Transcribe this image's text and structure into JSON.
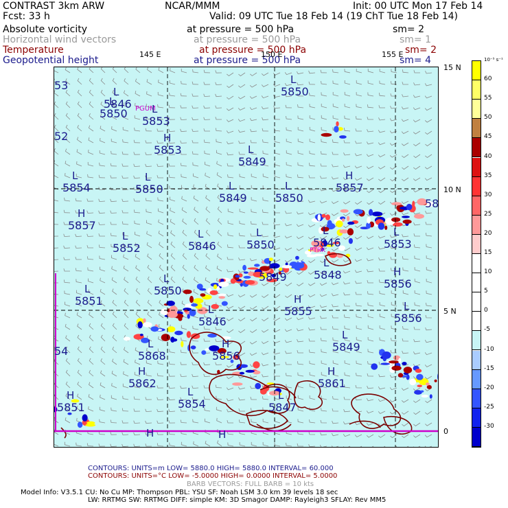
{
  "header": {
    "line1_left": "CONTRAST  3km ARW",
    "line1_center": "NCAR/MMM",
    "line1_right": "Init: 00 UTC Mon 17 Feb 14",
    "line2_left": "Fcst:    33 h",
    "line2_right": "Valid: 09 UTC Tue 18 Feb 14 (19 ChT Tue 18 Feb 14)",
    "fields": [
      {
        "name": "Absolute vorticity",
        "level": "at pressure =  500 hPa",
        "sm": "sm= 2",
        "color": "#000000"
      },
      {
        "name": "Horizontal wind vectors",
        "level": "at pressure =  500 hPa",
        "sm": "sm= 1",
        "color": "#9a9a9a"
      },
      {
        "name": "Temperature",
        "level": "at pressure =  500 hPa",
        "sm": "sm= 2",
        "color": "#8b0000"
      },
      {
        "name": "Geopotential height",
        "level": "at pressure =  500 hPa",
        "sm": "sm= 4",
        "color": "#1a1a8c"
      }
    ]
  },
  "map": {
    "lon_labels": [
      "145 E",
      "150 E",
      "155 E"
    ],
    "lat_labels": [
      "15 N",
      "10 N",
      "5 N",
      "0"
    ],
    "station_labels": [
      "PGUM",
      "PTRK"
    ],
    "height_centers": [
      {
        "type": "L",
        "value": "5846"
      },
      {
        "type": "L",
        "value": "5850"
      },
      {
        "type": "L",
        "value": "5853"
      },
      {
        "type": "H",
        "value": "5853"
      },
      {
        "type": "L",
        "value": "5849"
      },
      {
        "type": "L",
        "value": "5854"
      },
      {
        "type": "L",
        "value": "5850"
      },
      {
        "type": "L",
        "value": "5849"
      },
      {
        "type": "L",
        "value": "5850"
      },
      {
        "type": "H",
        "value": "5857"
      },
      {
        "type": "H",
        "value": "5857"
      },
      {
        "type": "L",
        "value": "5852"
      },
      {
        "type": "L",
        "value": "5846"
      },
      {
        "type": "L",
        "value": "5850"
      },
      {
        "type": "L",
        "value": "5846"
      },
      {
        "type": "L",
        "value": "5853"
      },
      {
        "type": "L",
        "value": "5849"
      },
      {
        "type": "L",
        "value": "5848"
      },
      {
        "type": "H",
        "value": "5856"
      },
      {
        "type": "L",
        "value": "5850"
      },
      {
        "type": "L",
        "value": "5851"
      },
      {
        "type": "H",
        "value": "5855"
      },
      {
        "type": "L",
        "value": "5850"
      },
      {
        "type": "L",
        "value": "5846"
      },
      {
        "type": "L",
        "value": "5849"
      },
      {
        "type": "H",
        "value": "5856"
      },
      {
        "type": "L",
        "value": "5856"
      },
      {
        "type": "L",
        "value": "5868"
      },
      {
        "type": "H",
        "value": "5862"
      },
      {
        "type": "L",
        "value": "5854"
      },
      {
        "type": "L",
        "value": "5847"
      },
      {
        "type": "H",
        "value": "5861"
      },
      {
        "type": "H",
        "value": "5851"
      },
      {
        "type": "",
        "value": "53"
      },
      {
        "type": "",
        "value": "52"
      },
      {
        "type": "",
        "value": "54"
      },
      {
        "type": "",
        "value": "58"
      },
      {
        "type": "H",
        "value": ""
      },
      {
        "type": "H",
        "value": ""
      }
    ]
  },
  "colorbar": {
    "unit": "10⁻⁵ s⁻¹",
    "ticks": [
      "60",
      "55",
      "50",
      "45",
      "40",
      "35",
      "30",
      "25",
      "20",
      "15",
      "10",
      "5",
      "0",
      "-5",
      "-10",
      "-15",
      "-20",
      "-25",
      "-30"
    ],
    "colors": [
      "#ffff00",
      "#ffff66",
      "#ffff99",
      "#c08040",
      "#aa0000",
      "#dd1111",
      "#ff3333",
      "#ff6666",
      "#ff9999",
      "#ffcccc",
      "#ffffff",
      "#ffffff",
      "#ffffff",
      "#ffffff",
      "#c8f5f5",
      "#aaccff",
      "#6699ff",
      "#3355ff",
      "#1122ee",
      "#0000cc"
    ]
  },
  "footer": {
    "line1": "CONTOURS:  UNITS=m   LOW=  5880.0         HIGH=  5880.0        INTERVAL=   60.000",
    "line2": "CONTOURS:  UNITS=°C  LOW= -5.0000         HIGH=  0.0000        INTERVAL=   5.0000",
    "line3": "BARB VECTORS:  FULL BARB = 10 kts",
    "model_line1": "Model Info: V3.5.1    CU: No Cu     MP: Thompson     PBL: YSU      SF: Noah LSM     3.0 km   39 levels   18 sec",
    "model_line2": "LW: RRTMG    SW: RRTMG  DIFF: simple KM: 3D Smagor DAMP: Rayleigh3  SFLAY: Rev MM5"
  }
}
